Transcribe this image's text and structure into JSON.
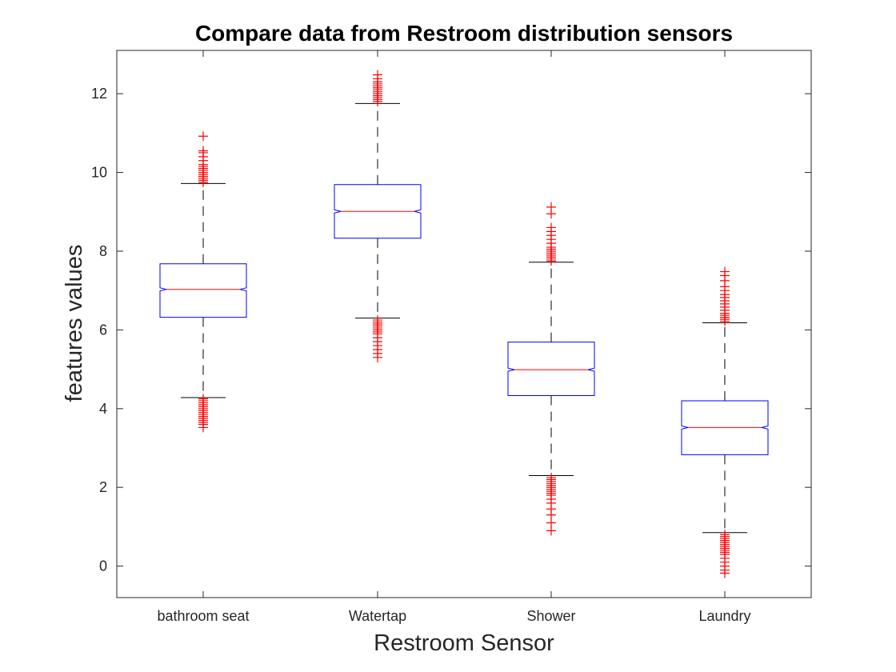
{
  "chart_data": {
    "type": "box",
    "title": "Compare data from Restroom distribution sensors",
    "xlabel": "Restroom Sensor",
    "ylabel": "features values",
    "ylim": [
      -0.8,
      13.1
    ],
    "yticks": [
      0,
      2,
      4,
      6,
      8,
      10,
      12
    ],
    "grid": false,
    "notched": true,
    "colors": {
      "box": "#0000ff",
      "median": "#ff0000",
      "whisker": "#000000",
      "outlier": "#ff0000",
      "axis": "#262626"
    },
    "categories": [
      "bathroom seat",
      "Watertap",
      "Shower",
      "Laundry"
    ],
    "boxes": [
      {
        "name": "bathroom seat",
        "q1": 6.32,
        "median": 7.03,
        "q3": 7.68,
        "whisker_low": 4.28,
        "whisker_high": 9.72,
        "notch_halfwidth": 0.04,
        "outliers_high": [
          9.75,
          9.8,
          9.85,
          9.9,
          9.95,
          10.0,
          10.05,
          10.1,
          10.15,
          10.2,
          10.3,
          10.4,
          10.5,
          10.55,
          10.92
        ],
        "outliers_low": [
          4.25,
          4.2,
          4.15,
          4.1,
          4.05,
          4.0,
          3.95,
          3.9,
          3.85,
          3.8,
          3.75,
          3.7,
          3.65,
          3.6,
          3.52
        ]
      },
      {
        "name": "Watertap",
        "q1": 8.33,
        "median": 9.01,
        "q3": 9.69,
        "whisker_low": 6.3,
        "whisker_high": 11.75,
        "notch_halfwidth": 0.04,
        "outliers_high": [
          11.8,
          11.85,
          11.9,
          11.95,
          12.0,
          12.05,
          12.1,
          12.15,
          12.2,
          12.25,
          12.3,
          12.38,
          12.48
        ],
        "outliers_low": [
          6.25,
          6.2,
          6.15,
          6.1,
          6.05,
          6.0,
          5.95,
          5.9,
          5.8,
          5.7,
          5.6,
          5.5,
          5.4,
          5.3
        ]
      },
      {
        "name": "Shower",
        "q1": 4.33,
        "median": 4.99,
        "q3": 5.69,
        "whisker_low": 2.3,
        "whisker_high": 7.72,
        "notch_halfwidth": 0.04,
        "outliers_high": [
          7.75,
          7.8,
          7.85,
          7.9,
          7.95,
          8.0,
          8.05,
          8.1,
          8.2,
          8.3,
          8.4,
          8.5,
          8.6,
          8.95,
          9.12
        ],
        "outliers_low": [
          2.25,
          2.2,
          2.15,
          2.1,
          2.05,
          2.0,
          1.95,
          1.9,
          1.85,
          1.8,
          1.7,
          1.6,
          1.45,
          1.3,
          1.1,
          0.9
        ]
      },
      {
        "name": "Laundry",
        "q1": 2.83,
        "median": 3.52,
        "q3": 4.2,
        "whisker_low": 0.85,
        "whisker_high": 6.18,
        "notch_halfwidth": 0.04,
        "outliers_high": [
          6.22,
          6.27,
          6.32,
          6.37,
          6.42,
          6.5,
          6.58,
          6.66,
          6.74,
          6.82,
          6.9,
          7.0,
          7.1,
          7.25,
          7.38,
          7.48
        ],
        "outliers_low": [
          0.8,
          0.75,
          0.7,
          0.65,
          0.6,
          0.55,
          0.5,
          0.45,
          0.4,
          0.35,
          0.3,
          0.2,
          0.1,
          0.0,
          -0.1,
          -0.18
        ]
      }
    ]
  }
}
